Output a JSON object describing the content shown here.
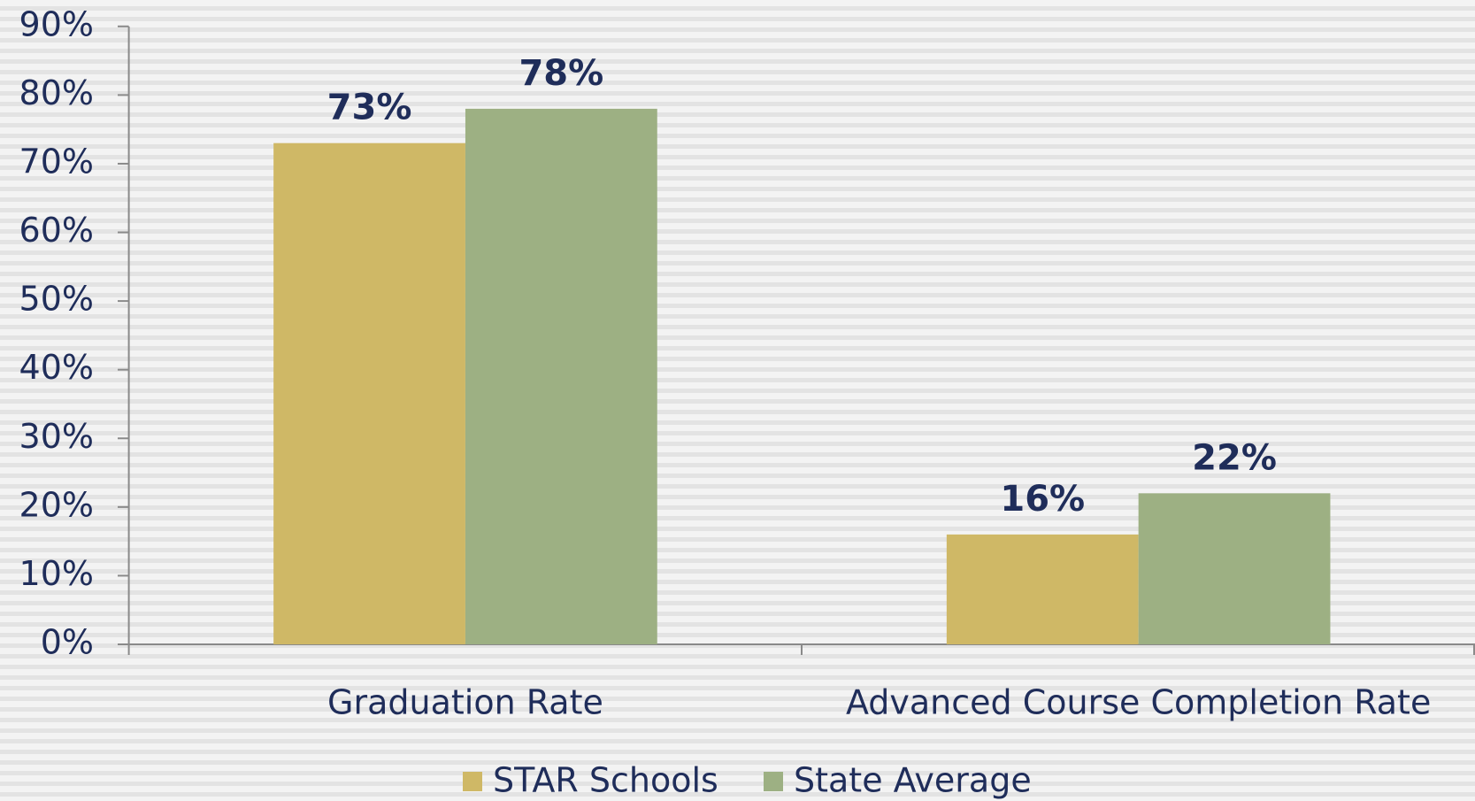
{
  "chart_data": {
    "type": "bar",
    "categories": [
      "Graduation Rate",
      "Advanced Course Completion Rate"
    ],
    "series": [
      {
        "name": "STAR Schools",
        "color": "#cfb866",
        "values": [
          73,
          16
        ],
        "value_labels": [
          "73%",
          "16%"
        ]
      },
      {
        "name": "State Average",
        "color": "#9db083",
        "values": [
          78,
          22
        ],
        "value_labels": [
          "78%",
          "22%"
        ]
      }
    ],
    "ylim": [
      0,
      90
    ],
    "yticks": [
      {
        "value": 0,
        "label": "0%"
      },
      {
        "value": 10,
        "label": "10%"
      },
      {
        "value": 20,
        "label": "20%"
      },
      {
        "value": 30,
        "label": "30%"
      },
      {
        "value": 40,
        "label": "40%"
      },
      {
        "value": 50,
        "label": "50%"
      },
      {
        "value": 60,
        "label": "60%"
      },
      {
        "value": 70,
        "label": "70%"
      },
      {
        "value": 80,
        "label": "80%"
      },
      {
        "value": 90,
        "label": "90%"
      }
    ],
    "grid": false,
    "legend": "bottom"
  }
}
